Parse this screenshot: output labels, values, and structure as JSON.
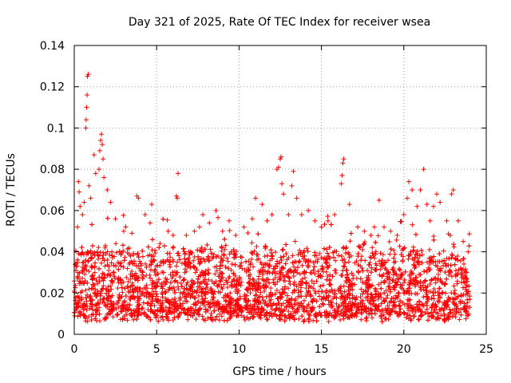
{
  "chart_data": {
    "type": "scatter",
    "title": "Day 321 of 2025, Rate Of TEC Index for receiver wsea",
    "xlabel": "GPS time / hours",
    "ylabel": "ROTI / TECUs",
    "xlim": [
      0,
      25
    ],
    "ylim": [
      0,
      0.14
    ],
    "xticks": [
      0,
      5,
      10,
      15,
      20,
      25
    ],
    "xtick_labels": [
      "0",
      "5",
      "10",
      "15",
      "20",
      "25"
    ],
    "yticks": [
      0,
      0.02,
      0.04,
      0.06,
      0.08,
      0.1,
      0.12,
      0.14
    ],
    "ytick_labels": [
      "0",
      "0.02",
      "0.04",
      "0.06",
      "0.08",
      "0.1",
      "0.12",
      "0.14"
    ],
    "grid": true,
    "marker": "+",
    "color": "#ff0000",
    "series": [
      {
        "name": "ROTI",
        "points": [
          [
            0.1,
            0.031
          ],
          [
            0.2,
            0.052
          ],
          [
            0.25,
            0.074
          ],
          [
            0.3,
            0.069
          ],
          [
            0.35,
            0.062
          ],
          [
            0.5,
            0.058
          ],
          [
            0.6,
            0.064
          ],
          [
            0.7,
            0.1
          ],
          [
            0.72,
            0.104
          ],
          [
            0.75,
            0.11
          ],
          [
            0.78,
            0.116
          ],
          [
            0.8,
            0.125
          ],
          [
            0.85,
            0.126
          ],
          [
            0.9,
            0.072
          ],
          [
            1.0,
            0.066
          ],
          [
            1.2,
            0.087
          ],
          [
            1.3,
            0.078
          ],
          [
            1.5,
            0.08
          ],
          [
            1.55,
            0.089
          ],
          [
            1.6,
            0.094
          ],
          [
            1.65,
            0.097
          ],
          [
            1.7,
            0.092
          ],
          [
            1.75,
            0.085
          ],
          [
            1.8,
            0.076
          ],
          [
            2.0,
            0.07
          ],
          [
            2.2,
            0.064
          ],
          [
            2.5,
            0.056
          ],
          [
            3.0,
            0.05
          ],
          [
            3.5,
            0.049
          ],
          [
            3.8,
            0.067
          ],
          [
            3.9,
            0.066
          ],
          [
            4.3,
            0.058
          ],
          [
            4.6,
            0.054
          ],
          [
            4.7,
            0.063
          ],
          [
            5.2,
            0.044
          ],
          [
            5.7,
            0.05
          ],
          [
            6.0,
            0.048
          ],
          [
            6.2,
            0.067
          ],
          [
            6.25,
            0.066
          ],
          [
            6.3,
            0.078
          ],
          [
            6.8,
            0.048
          ],
          [
            7.3,
            0.05
          ],
          [
            7.6,
            0.052
          ],
          [
            7.8,
            0.058
          ],
          [
            8.2,
            0.054
          ],
          [
            8.6,
            0.06
          ],
          [
            9.0,
            0.05
          ],
          [
            9.4,
            0.055
          ],
          [
            9.8,
            0.048
          ],
          [
            10.3,
            0.052
          ],
          [
            10.8,
            0.056
          ],
          [
            11.0,
            0.066
          ],
          [
            11.4,
            0.063
          ],
          [
            11.7,
            0.055
          ],
          [
            12.0,
            0.058
          ],
          [
            12.3,
            0.08
          ],
          [
            12.4,
            0.081
          ],
          [
            12.5,
            0.085
          ],
          [
            12.55,
            0.086
          ],
          [
            12.6,
            0.073
          ],
          [
            12.7,
            0.068
          ],
          [
            13.0,
            0.058
          ],
          [
            13.2,
            0.072
          ],
          [
            13.3,
            0.079
          ],
          [
            13.5,
            0.066
          ],
          [
            13.8,
            0.058
          ],
          [
            14.2,
            0.06
          ],
          [
            14.6,
            0.055
          ],
          [
            15.0,
            0.052
          ],
          [
            15.4,
            0.055
          ],
          [
            15.8,
            0.058
          ],
          [
            16.2,
            0.073
          ],
          [
            16.25,
            0.077
          ],
          [
            16.3,
            0.083
          ],
          [
            16.35,
            0.085
          ],
          [
            16.7,
            0.063
          ],
          [
            17.2,
            0.052
          ],
          [
            17.6,
            0.05
          ],
          [
            18.0,
            0.048
          ],
          [
            18.5,
            0.065
          ],
          [
            18.8,
            0.052
          ],
          [
            19.2,
            0.05
          ],
          [
            19.6,
            0.048
          ],
          [
            20.0,
            0.058
          ],
          [
            20.2,
            0.066
          ],
          [
            20.3,
            0.074
          ],
          [
            20.5,
            0.07
          ],
          [
            20.8,
            0.062
          ],
          [
            21.0,
            0.07
          ],
          [
            21.2,
            0.08
          ],
          [
            21.4,
            0.063
          ],
          [
            21.6,
            0.055
          ],
          [
            21.8,
            0.062
          ],
          [
            22.0,
            0.068
          ],
          [
            22.2,
            0.064
          ],
          [
            22.6,
            0.055
          ],
          [
            22.9,
            0.068
          ],
          [
            23.0,
            0.07
          ],
          [
            23.3,
            0.055
          ],
          [
            23.6,
            0.045
          ],
          [
            23.9,
            0.04
          ]
        ]
      }
    ]
  }
}
